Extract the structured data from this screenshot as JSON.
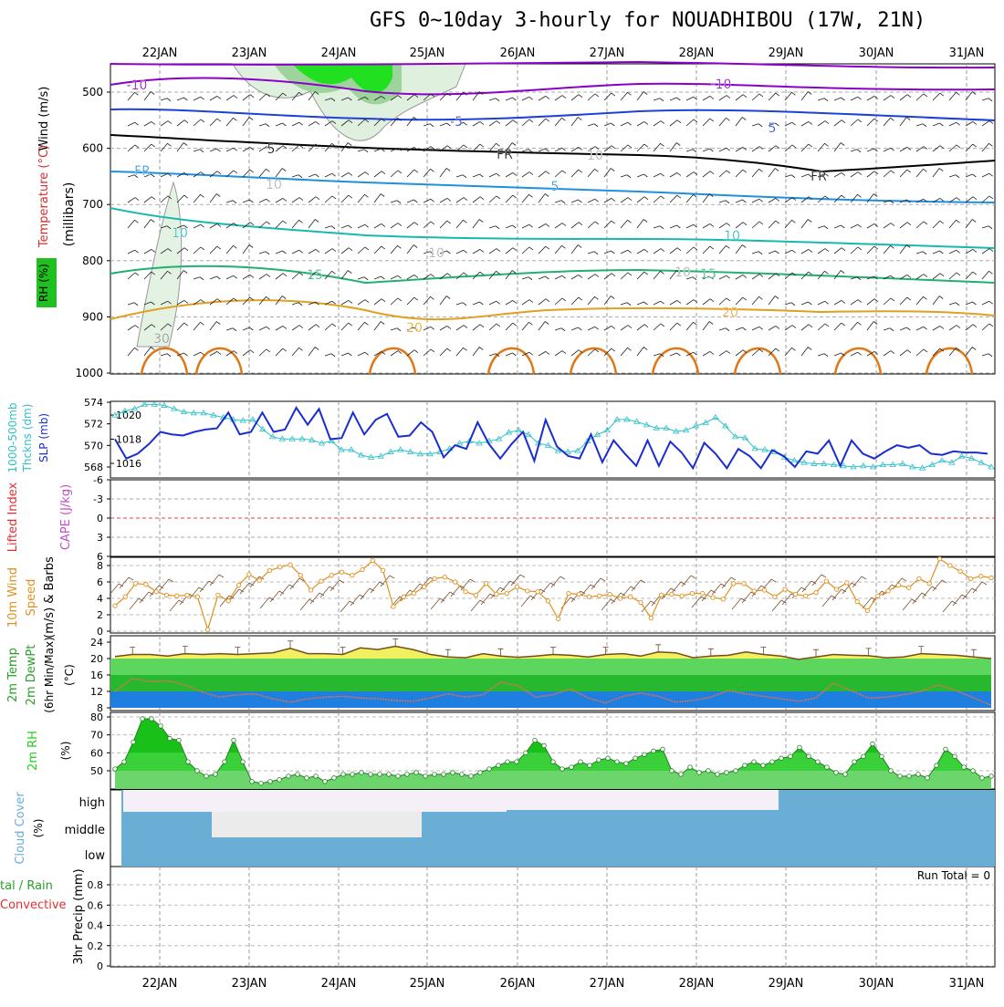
{
  "title": "GFS 0~10day 3-hourly for NOUADHIBOU (17W, 21N)",
  "dates": [
    "22JAN",
    "23JAN",
    "24JAN",
    "25JAN",
    "26JAN",
    "27JAN",
    "28JAN",
    "29JAN",
    "30JAN",
    "31JAN"
  ],
  "colors": {
    "purple": "#8a00c8",
    "blue": "#1e3fd8",
    "lightblue": "#1e90e0",
    "teal": "#18b8b0",
    "green": "#20b070",
    "orange": "#e0a020",
    "darkorange": "#e07818",
    "slp": "#1a2ed0",
    "thick": "#30c0c8",
    "wind10": "#e09020",
    "temp": "#7a4a1a",
    "rh_green": "#20d020",
    "cloud": "#6aaed6"
  },
  "panels": {
    "upper": {
      "ylabel_main": "(millibars)",
      "ylabel_wind": "Wind (m/s)",
      "ylabel_temp": "Temperature (°C)",
      "ylabel_rh": "RH (%)",
      "ticks": [
        "500",
        "600",
        "700",
        "800",
        "900",
        "1000"
      ],
      "contour_labels": [
        "-10",
        "-10",
        "-5",
        "5",
        "FR",
        "FR",
        "FR",
        "5",
        "5",
        "10",
        "10",
        "15",
        "15",
        "20",
        "20",
        "30",
        "10",
        "10",
        "10",
        "10"
      ]
    },
    "slp": {
      "ylabel_left": "1000-500mb",
      "ylabel_left2": "Thckns (dm)",
      "ylabel_right": "SLP (mb)",
      "left_ticks": [
        "574",
        "572",
        "570",
        "568"
      ],
      "right_ticks": [
        "1020",
        "1018",
        "1016"
      ]
    },
    "li": {
      "ylabel_left": "Lifted Index",
      "ylabel_right": "CAPE (J/kg)",
      "ticks": [
        "-6",
        "-3",
        "0",
        "3",
        "6"
      ]
    },
    "wind10": {
      "ylabel_1": "10m Wind",
      "ylabel_2": "Speed",
      "ylabel_3": "(m/s) & Barbs",
      "ticks": [
        "8",
        "6",
        "4",
        "2",
        "0"
      ]
    },
    "temp": {
      "ylabel_1": "2m Temp",
      "ylabel_2": "2m DewPt",
      "ylabel_3": "(6hr Min/Max)",
      "ylabel_unit": "(°C)",
      "ticks": [
        "24",
        "20",
        "16",
        "12",
        "8"
      ]
    },
    "rh": {
      "ylabel": "2m RH",
      "ylabel_unit": "(%)",
      "ticks": [
        "80",
        "70",
        "60",
        "50"
      ]
    },
    "cloud": {
      "ylabel": "Cloud Cover",
      "ylabel_unit": "(%)",
      "levels": [
        "high",
        "middle",
        "low"
      ]
    },
    "precip": {
      "ylabel": "3hr Precip (mm)",
      "ylabel_total": "tal / Rain",
      "ylabel_conv": "Convective",
      "run_total": "Run Total = 0",
      "ticks": [
        "0.8",
        "0.6",
        "0.4",
        "0.2",
        "0"
      ]
    }
  },
  "chart_data": [
    {
      "type": "line",
      "title": "SLP and 1000-500mb thickness",
      "series": [
        {
          "name": "SLP (mb)",
          "values": [
            1018,
            1016.4,
            1016.8,
            1017.6,
            1018.6,
            1018.4,
            1018.3,
            1018.6,
            1018.8,
            1018.9,
            1020.2,
            1018.4,
            1018.6,
            1020.2,
            1018.6,
            1018.8,
            1020.6,
            1019.2,
            1020.5,
            1018,
            1018.1,
            1020.2,
            1018.4,
            1019.6,
            1020.1,
            1018.2,
            1018.3,
            1019.4,
            1018.6,
            1016.5,
            1017.5,
            1017.2,
            1019.4,
            1017.6,
            1016.4,
            1017.6,
            1018.6,
            1016.2,
            1019.6,
            1017.4,
            1016.6,
            1016.4,
            1018.4,
            1016.1,
            1017.9,
            1016.8,
            1015.8,
            1017.9,
            1015.8,
            1017.8,
            1016.9,
            1015.6,
            1017.7,
            1016.8,
            1015.6,
            1017.2,
            1016.6,
            1015.6,
            1017.1,
            1016.6,
            1015.7,
            1017.0,
            1016.8,
            1017.9,
            1015.8,
            1017.9,
            1016.8,
            1016.4,
            1017.0,
            1017.5,
            1017.3,
            1017.5,
            1016.8,
            1016.7,
            1017.0,
            1016.9,
            1016.9,
            1016.8
          ]
        },
        {
          "name": "1000-500mb Thickness (dm)",
          "values": [
            572.8,
            573.2,
            573.4,
            573.8,
            573.8,
            573.7,
            573.4,
            573.1,
            573.0,
            573.0,
            572.8,
            572.6,
            572.4,
            572.3,
            572.4,
            571.5,
            570.8,
            570.6,
            570.6,
            570.6,
            570.5,
            570.2,
            570.4,
            569.6,
            569.6,
            569.1,
            568.9,
            569.0,
            569.4,
            569.6,
            569.4,
            569.2,
            569.2,
            569.4,
            569.7,
            570.2,
            570.4,
            570.2,
            570.4,
            570.6,
            571.2,
            571.4,
            571.0,
            570.2,
            570.0,
            569.5,
            569.4,
            569.5,
            570.4,
            571.0,
            571.4,
            572.4,
            572.4,
            572.2,
            571.9,
            571.6,
            571.6,
            571.3,
            571.4,
            571.8,
            572.1,
            572.6,
            571.8,
            570.8,
            570.7,
            569.7,
            569.6,
            569.4,
            568.9,
            568.6,
            568.4,
            568.3,
            568.3,
            568.2,
            568.1,
            568.0,
            568.1,
            568.0,
            568.2,
            568.2,
            568.3,
            568.0,
            567.9,
            568.2,
            568.6,
            568.4,
            569.0,
            568.8,
            568.4,
            568.0
          ]
        }
      ]
    },
    {
      "type": "line",
      "title": "10m wind speed (m/s)",
      "ylim": [
        0,
        9
      ],
      "series": [
        {
          "name": "10m Wind Speed",
          "values": [
            3.1,
            4.2,
            5.8,
            5.7,
            4.8,
            4.4,
            4.3,
            4.4,
            4.2,
            0.2,
            4.4,
            3.7,
            5.6,
            6.9,
            6.2,
            7.4,
            7.8,
            8.1,
            6.8,
            5.0,
            6.1,
            6.8,
            7.2,
            6.8,
            7.5,
            8.6,
            7.4,
            3.0,
            4.2,
            4.6,
            5.4,
            6.4,
            6.6,
            6.0,
            4.8,
            4.4,
            5.8,
            4.5,
            4.6,
            5.4,
            4.9,
            4.8,
            3.7,
            1.5,
            4.6,
            4.5,
            4.2,
            4.3,
            4.5,
            4.0,
            4.2,
            3.5,
            1.6,
            4.4,
            4.5,
            4.3,
            4.6,
            4.6,
            4.1,
            3.9,
            5.8,
            5.8,
            4.9,
            5.0,
            4.2,
            5.1,
            4.5,
            4.3,
            4.7,
            6.1,
            5.1,
            5.9,
            3.6,
            2.5,
            4.3,
            4.9,
            5.6,
            5.3,
            6.4,
            5.8,
            8.8,
            8.0,
            7.3,
            6.4,
            6.7,
            6.5
          ]
        }
      ]
    },
    {
      "type": "area",
      "title": "2m Temp and DewPt (°C)",
      "ylim": [
        8,
        24
      ],
      "series": [
        {
          "name": "2m Temp",
          "values": [
            20.5,
            21.0,
            21.0,
            20.6,
            21.2,
            21.0,
            21.2,
            21.0,
            21.2,
            21.4,
            22.5,
            21.2,
            21.2,
            21.0,
            22.6,
            22.2,
            23.0,
            22.2,
            21.0,
            20.4,
            20.2,
            21.2,
            20.6,
            20.3,
            20.6,
            21.0,
            20.8,
            20.4,
            21.0,
            21.2,
            20.6,
            21.6,
            21.4,
            20.2,
            20.6,
            20.8,
            21.6,
            21.0,
            20.6,
            19.8,
            20.4,
            21.0,
            20.8,
            20.7,
            20.2,
            20.4,
            21.2,
            21.0,
            20.8,
            20.4,
            20.0
          ]
        },
        {
          "name": "2m DewPt",
          "values": [
            12.0,
            15.2,
            14.4,
            14.6,
            13.6,
            11.8,
            10.6,
            11.2,
            11.4,
            10.2,
            9.4,
            10.2,
            10.6,
            10.8,
            10.4,
            10.2,
            9.8,
            9.6,
            10.4,
            11.4,
            10.6,
            11.2,
            14.2,
            13.4,
            10.6,
            11.2,
            12.6,
            10.4,
            9.2,
            10.8,
            11.6,
            10.8,
            9.4,
            9.8,
            10.6,
            12.2,
            11.4,
            10.8,
            10.2,
            9.6,
            10.4,
            14.0,
            12.2,
            10.4,
            10.6,
            11.2,
            12.0,
            13.6,
            12.2,
            10.4,
            8.6
          ]
        }
      ]
    },
    {
      "type": "area",
      "title": "2m RH (%)",
      "ylim": [
        40,
        80
      ],
      "series": [
        {
          "name": "2m RH",
          "values": [
            51,
            55,
            66,
            79,
            79,
            75,
            68,
            67,
            55,
            50,
            47,
            48,
            55,
            67,
            55,
            44,
            43,
            44,
            45,
            47,
            48,
            46,
            47,
            44,
            46,
            48,
            48,
            49,
            48,
            48,
            48,
            47,
            48,
            49,
            47,
            48,
            48,
            49,
            48,
            47,
            49,
            51,
            53,
            55,
            55,
            60,
            67,
            64,
            55,
            51,
            52,
            55,
            53,
            56,
            57,
            55,
            54,
            57,
            59,
            61,
            62,
            50,
            48,
            52,
            49,
            50,
            48,
            49,
            50,
            53,
            55,
            53,
            55,
            57,
            58,
            63,
            58,
            55,
            52,
            49,
            48,
            55,
            58,
            65,
            58,
            50,
            47,
            47,
            48,
            46,
            53,
            62,
            58,
            52,
            50,
            46,
            47
          ]
        }
      ]
    },
    {
      "type": "bar",
      "title": "3hr Precip (mm)",
      "ylim": [
        0,
        1
      ],
      "values": []
    }
  ]
}
